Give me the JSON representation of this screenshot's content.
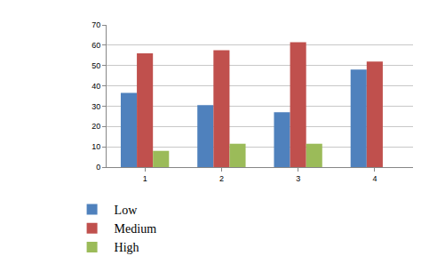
{
  "chart_data": {
    "type": "bar",
    "categories": [
      "1",
      "2",
      "3",
      "4"
    ],
    "series": [
      {
        "name": "Low",
        "color": "#4f81bd",
        "values": [
          36.5,
          30.5,
          27,
          48
        ]
      },
      {
        "name": "Medium",
        "color": "#c0504d",
        "values": [
          56,
          57.5,
          61.5,
          52
        ]
      },
      {
        "name": "High",
        "color": "#9bbb59",
        "values": [
          8,
          11.5,
          11.5,
          null
        ]
      }
    ],
    "ylim": [
      0,
      70
    ],
    "yticks": [
      0,
      10,
      20,
      30,
      40,
      50,
      60,
      70
    ],
    "grid": true,
    "legend": "bottom"
  }
}
